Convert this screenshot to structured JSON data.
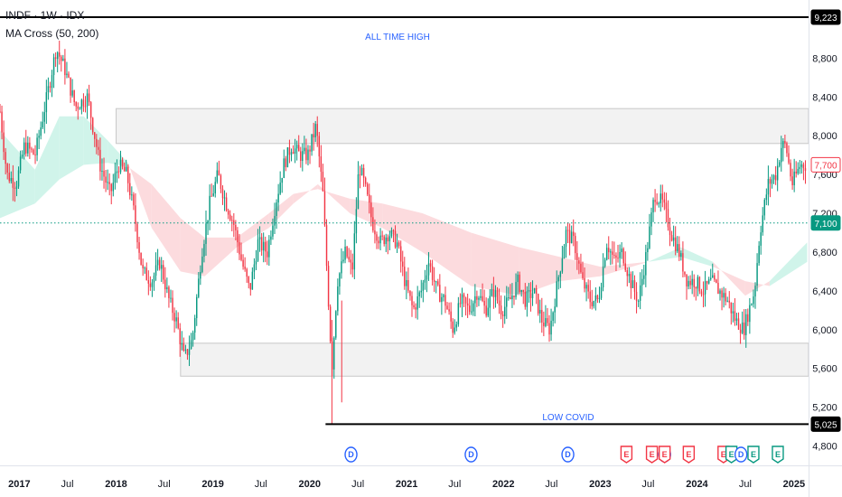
{
  "header": {
    "symbol": "INDF · 1W · IDX",
    "indicator": "MA Cross (50, 200)"
  },
  "colors": {
    "up": "#089981",
    "down": "#f23645",
    "zone_fill": "#f0f0f0",
    "zone_stroke": "#c8c8c8",
    "ma_bull": "#c8f2e6",
    "ma_bear": "#fbd5d8",
    "dotted": "#089981",
    "anno": "#2962ff",
    "tag_price": "#f23645",
    "tag_dotted": "#089981",
    "tag_black": "#000000",
    "div_badge": "#2962ff",
    "earn_down": "#f23645",
    "earn_up": "#089981"
  },
  "annotations": {
    "ath_label": "ALL TIME HIGH",
    "low_label": "LOW COVID"
  },
  "chart_data": {
    "type": "candlestick",
    "y_range": [
      4600,
      9400
    ],
    "y_ticks": [
      {
        "value": 4800,
        "label": "4,800"
      },
      {
        "value": 5200,
        "label": "5,200"
      },
      {
        "value": 5600,
        "label": "5,600"
      },
      {
        "value": 6000,
        "label": "6,000"
      },
      {
        "value": 6400,
        "label": "6,400"
      },
      {
        "value": 6800,
        "label": "6,800"
      },
      {
        "value": 7200,
        "label": "7,200"
      },
      {
        "value": 7600,
        "label": "7,600"
      },
      {
        "value": 8000,
        "label": "8,000"
      },
      {
        "value": 8400,
        "label": "8,400"
      },
      {
        "value": 8800,
        "label": "8,800"
      }
    ],
    "x_range": [
      "2016-10-20",
      "2025-02-25"
    ],
    "x_ticks": [
      {
        "date": "2017-01-01",
        "label": "2017",
        "year": true
      },
      {
        "date": "2017-07-01",
        "label": "Jul",
        "year": false
      },
      {
        "date": "2018-01-01",
        "label": "2018",
        "year": true
      },
      {
        "date": "2018-07-01",
        "label": "Jul",
        "year": false
      },
      {
        "date": "2019-01-01",
        "label": "2019",
        "year": true
      },
      {
        "date": "2019-07-01",
        "label": "Jul",
        "year": false
      },
      {
        "date": "2020-01-01",
        "label": "2020",
        "year": true
      },
      {
        "date": "2020-07-01",
        "label": "Jul",
        "year": false
      },
      {
        "date": "2021-01-01",
        "label": "2021",
        "year": true
      },
      {
        "date": "2021-07-01",
        "label": "Jul",
        "year": false
      },
      {
        "date": "2022-01-01",
        "label": "2022",
        "year": true
      },
      {
        "date": "2022-07-01",
        "label": "Jul",
        "year": false
      },
      {
        "date": "2023-01-01",
        "label": "2023",
        "year": true
      },
      {
        "date": "2023-07-01",
        "label": "Jul",
        "year": false
      },
      {
        "date": "2024-01-01",
        "label": "2024",
        "year": true
      },
      {
        "date": "2024-07-01",
        "label": "Jul",
        "year": false
      },
      {
        "date": "2025-01-01",
        "label": "2025",
        "year": true
      }
    ],
    "price_path": [
      [
        "2016-10-20",
        8250
      ],
      [
        "2016-11-15",
        7600
      ],
      [
        "2016-12-20",
        7500
      ],
      [
        "2017-01-20",
        7900
      ],
      [
        "2017-03-01",
        7800
      ],
      [
        "2017-04-15",
        8400
      ],
      [
        "2017-05-20",
        8900
      ],
      [
        "2017-06-20",
        8700
      ],
      [
        "2017-08-01",
        8300
      ],
      [
        "2017-09-15",
        8400
      ],
      [
        "2017-11-01",
        7700
      ],
      [
        "2017-12-10",
        7400
      ],
      [
        "2018-01-10",
        7700
      ],
      [
        "2018-02-10",
        7600
      ],
      [
        "2018-03-10",
        7200
      ],
      [
        "2018-04-10",
        6600
      ],
      [
        "2018-05-15",
        6500
      ],
      [
        "2018-06-15",
        6700
      ],
      [
        "2018-07-20",
        6300
      ],
      [
        "2018-08-15",
        6100
      ],
      [
        "2018-09-15",
        5700
      ],
      [
        "2018-10-15",
        5900
      ],
      [
        "2018-11-20",
        6800
      ],
      [
        "2018-12-20",
        7300
      ],
      [
        "2019-01-20",
        7600
      ],
      [
        "2019-02-20",
        7300
      ],
      [
        "2019-03-20",
        7100
      ],
      [
        "2019-04-20",
        6700
      ],
      [
        "2019-05-20",
        6400
      ],
      [
        "2019-06-20",
        6900
      ],
      [
        "2019-07-25",
        6800
      ],
      [
        "2019-08-25",
        7300
      ],
      [
        "2019-09-25",
        7700
      ],
      [
        "2019-10-25",
        7900
      ],
      [
        "2019-11-25",
        7800
      ],
      [
        "2019-12-25",
        7800
      ],
      [
        "2020-01-25",
        8100
      ],
      [
        "2020-02-20",
        7400
      ],
      [
        "2020-03-10",
        6400
      ],
      [
        "2020-03-25",
        5600
      ],
      [
        "2020-04-15",
        6500
      ],
      [
        "2020-05-15",
        6800
      ],
      [
        "2020-06-10",
        6600
      ],
      [
        "2020-07-05",
        7700
      ],
      [
        "2020-07-25",
        7500
      ],
      [
        "2020-08-25",
        7100
      ],
      [
        "2020-09-25",
        6900
      ],
      [
        "2020-10-25",
        7000
      ],
      [
        "2020-11-25",
        6900
      ],
      [
        "2020-12-25",
        6500
      ],
      [
        "2021-01-25",
        6200
      ],
      [
        "2021-02-25",
        6400
      ],
      [
        "2021-03-25",
        6700
      ],
      [
        "2021-04-25",
        6400
      ],
      [
        "2021-05-25",
        6300
      ],
      [
        "2021-06-25",
        6000
      ],
      [
        "2021-07-25",
        6300
      ],
      [
        "2021-08-25",
        6200
      ],
      [
        "2021-09-25",
        6400
      ],
      [
        "2021-10-25",
        6200
      ],
      [
        "2021-11-25",
        6400
      ],
      [
        "2021-12-25",
        6200
      ],
      [
        "2022-01-25",
        6300
      ],
      [
        "2022-02-25",
        6500
      ],
      [
        "2022-03-25",
        6300
      ],
      [
        "2022-04-25",
        6400
      ],
      [
        "2022-05-25",
        6100
      ],
      [
        "2022-06-25",
        6000
      ],
      [
        "2022-07-25",
        6500
      ],
      [
        "2022-08-25",
        7000
      ],
      [
        "2022-09-25",
        6900
      ],
      [
        "2022-10-25",
        6500
      ],
      [
        "2022-11-25",
        6300
      ],
      [
        "2022-12-25",
        6300
      ],
      [
        "2023-01-25",
        6900
      ],
      [
        "2023-02-25",
        6700
      ],
      [
        "2023-03-25",
        6800
      ],
      [
        "2023-04-25",
        6500
      ],
      [
        "2023-05-25",
        6300
      ],
      [
        "2023-06-25",
        6800
      ],
      [
        "2023-07-25",
        7400
      ],
      [
        "2023-08-25",
        7300
      ],
      [
        "2023-09-25",
        7000
      ],
      [
        "2023-10-25",
        6800
      ],
      [
        "2023-11-25",
        6500
      ],
      [
        "2023-12-25",
        6500
      ],
      [
        "2024-01-25",
        6400
      ],
      [
        "2024-02-25",
        6500
      ],
      [
        "2024-03-25",
        6400
      ],
      [
        "2024-04-25",
        6300
      ],
      [
        "2024-05-25",
        6100
      ],
      [
        "2024-06-25",
        6000
      ],
      [
        "2024-07-15",
        6200
      ],
      [
        "2024-08-05",
        6400
      ],
      [
        "2024-08-25",
        7000
      ],
      [
        "2024-09-25",
        7500
      ],
      [
        "2024-10-25",
        7600
      ],
      [
        "2024-11-15",
        7900
      ],
      [
        "2024-12-01",
        7900
      ],
      [
        "2024-12-25",
        7500
      ],
      [
        "2025-01-25",
        7700
      ],
      [
        "2025-02-15",
        7700
      ]
    ],
    "ma_band": [
      {
        "date": "2016-10-20",
        "fast": 8050,
        "slow": 7150
      },
      {
        "date": "2017-03-01",
        "fast": 7650,
        "slow": 7300
      },
      {
        "date": "2017-06-01",
        "fast": 8200,
        "slow": 7550
      },
      {
        "date": "2017-09-01",
        "fast": 8200,
        "slow": 7700
      },
      {
        "date": "2017-12-01",
        "fast": 7950,
        "slow": 7720
      },
      {
        "date": "2018-02-15",
        "fast": 7720,
        "slow": 7680
      },
      {
        "date": "2018-05-15",
        "fast": 7050,
        "slow": 7500
      },
      {
        "date": "2018-09-01",
        "fast": 6600,
        "slow": 7150
      },
      {
        "date": "2018-12-01",
        "fast": 6550,
        "slow": 6950
      },
      {
        "date": "2019-04-01",
        "fast": 6850,
        "slow": 6950
      },
      {
        "date": "2019-08-01",
        "fast": 7050,
        "slow": 7200
      },
      {
        "date": "2019-11-01",
        "fast": 7300,
        "slow": 7400
      },
      {
        "date": "2020-02-01",
        "fast": 7500,
        "slow": 7450
      },
      {
        "date": "2020-06-01",
        "fast": 7200,
        "slow": 7350
      },
      {
        "date": "2020-10-01",
        "fast": 7050,
        "slow": 7300
      },
      {
        "date": "2021-03-01",
        "fast": 6800,
        "slow": 7200
      },
      {
        "date": "2021-09-01",
        "fast": 6450,
        "slow": 7000
      },
      {
        "date": "2022-03-01",
        "fast": 6350,
        "slow": 6850
      },
      {
        "date": "2022-08-01",
        "fast": 6500,
        "slow": 6750
      },
      {
        "date": "2023-01-01",
        "fast": 6550,
        "slow": 6650
      },
      {
        "date": "2023-07-01",
        "fast": 6700,
        "slow": 6700
      },
      {
        "date": "2023-11-01",
        "fast": 6850,
        "slow": 6750
      },
      {
        "date": "2024-03-01",
        "fast": 6700,
        "slow": 6650
      },
      {
        "date": "2024-07-01",
        "fast": 6350,
        "slow": 6500
      },
      {
        "date": "2024-10-01",
        "fast": 6500,
        "slow": 6450
      },
      {
        "date": "2025-02-20",
        "fast": 6900,
        "slow": 6700
      }
    ],
    "zones": [
      {
        "date_start": "2018-01-01",
        "date_end": "2025-02-25",
        "low": 7920,
        "high": 8280
      },
      {
        "date_start": "2018-09-01",
        "date_end": "2025-02-25",
        "low": 5520,
        "high": 5860
      }
    ],
    "levels": [
      {
        "name": "all-time-high",
        "value": 9223,
        "date_start": "2016-10-20",
        "label": "9,223"
      },
      {
        "name": "covid-low",
        "value": 5025,
        "date_start": "2020-03-01",
        "label": "5,025"
      }
    ],
    "current_price": {
      "value": 7700,
      "label": "7,700"
    },
    "dotted_level": {
      "value": 7100,
      "label": "7,100"
    },
    "events": [
      {
        "date": "2020-06-05",
        "kind": "dividend",
        "label": "D"
      },
      {
        "date": "2021-09-01",
        "kind": "dividend",
        "label": "D"
      },
      {
        "date": "2022-09-01",
        "kind": "dividend",
        "label": "D"
      },
      {
        "date": "2023-04-10",
        "kind": "earnings-down",
        "label": "E"
      },
      {
        "date": "2023-07-15",
        "kind": "earnings-down",
        "label": "E"
      },
      {
        "date": "2023-09-01",
        "kind": "dividend",
        "label": "D"
      },
      {
        "date": "2023-09-01",
        "kind": "earnings-down",
        "label": "E"
      },
      {
        "date": "2023-12-01",
        "kind": "earnings-down",
        "label": "E"
      },
      {
        "date": "2024-04-10",
        "kind": "earnings-down",
        "label": "E"
      },
      {
        "date": "2024-05-10",
        "kind": "earnings-up",
        "label": "E"
      },
      {
        "date": "2024-06-15",
        "kind": "dividend",
        "label": "D"
      },
      {
        "date": "2024-08-01",
        "kind": "earnings-up",
        "label": "E"
      },
      {
        "date": "2024-11-01",
        "kind": "earnings-up",
        "label": "E"
      }
    ]
  }
}
